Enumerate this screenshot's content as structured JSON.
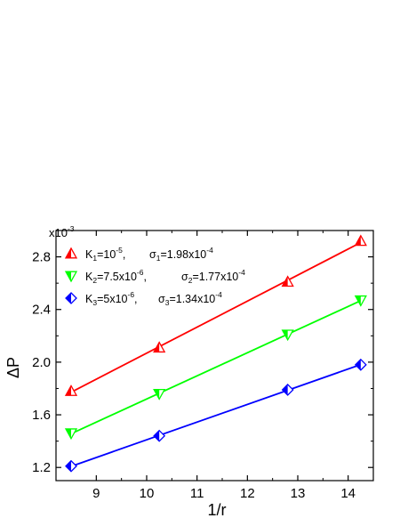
{
  "chart_data": {
    "type": "scatter",
    "xlabel": "1/r",
    "ylabel": "ΔP",
    "y_multiplier": "x10",
    "y_multiplier_exp": "-3",
    "xlim": [
      8.2,
      14.5
    ],
    "ylim": [
      1.1,
      3.0
    ],
    "xticks": [
      9,
      10,
      11,
      12,
      13,
      14
    ],
    "yticks": [
      1.2,
      1.6,
      2.0,
      2.4,
      2.8
    ],
    "ytick_labels": [
      "1.2",
      "1.6",
      "2.0",
      "2.4",
      "2.8"
    ],
    "legend_position": "top-left",
    "series": [
      {
        "name": "K1=10-5, σ1=1.98x10-4",
        "marker": "triangle-up",
        "color": "#ff0000",
        "x": [
          8.5,
          10.25,
          12.8,
          14.25
        ],
        "y": [
          1.78,
          2.11,
          2.61,
          2.92
        ],
        "legend": {
          "k_sub": "1",
          "k_val": "=10",
          "k_exp": "-5",
          "k_tail": ",",
          "s_sub": "1",
          "s_val": "=1.98x10",
          "s_exp": "-4"
        }
      },
      {
        "name": "K2=7.5x10-6, σ2=1.77x10-4",
        "marker": "triangle-down",
        "color": "#00ff00",
        "x": [
          8.5,
          10.25,
          12.8,
          14.25
        ],
        "y": [
          1.46,
          1.76,
          2.21,
          2.47
        ],
        "legend": {
          "k_sub": "2",
          "k_val": "=7.5x10",
          "k_exp": "-6",
          "k_tail": ",",
          "s_sub": "2",
          "s_val": "=1.77x10",
          "s_exp": "-4"
        }
      },
      {
        "name": "K3=5x10-6, σ3=1.34x10-4",
        "marker": "diamond",
        "color": "#0000ff",
        "x": [
          8.5,
          10.25,
          12.8,
          14.25
        ],
        "y": [
          1.21,
          1.44,
          1.79,
          1.98
        ],
        "legend": {
          "k_sub": "3",
          "k_val": "=5x10",
          "k_exp": "-6",
          "k_tail": ",",
          "s_sub": "3",
          "s_val": "=1.34x10",
          "s_exp": "-4"
        }
      }
    ]
  }
}
